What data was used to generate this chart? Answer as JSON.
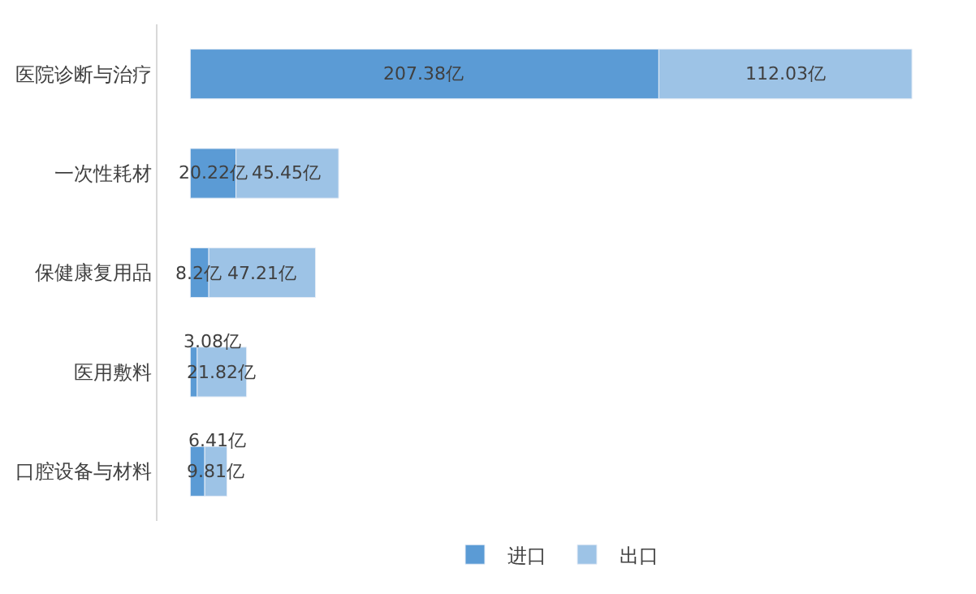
{
  "chart_data": {
    "type": "bar",
    "orientation": "horizontal",
    "stacked": true,
    "categories": [
      "医院诊断与治疗",
      "一次性耗材",
      "保健康复用品",
      "医用敷料",
      "口腔设备与材料"
    ],
    "series": [
      {
        "name": "进口",
        "color": "#5b9bd5",
        "values": [
          207.38,
          20.22,
          8.2,
          3.08,
          6.41
        ],
        "value_labels": [
          "207.38亿",
          "20.22亿",
          "8.2亿",
          "3.08亿",
          "6.41亿"
        ]
      },
      {
        "name": "出口",
        "color": "#9dc3e6",
        "values": [
          112.03,
          45.45,
          47.21,
          21.82,
          9.81
        ],
        "value_labels": [
          "112.03亿",
          "45.45亿",
          "47.21亿",
          "21.82亿",
          "9.81亿"
        ]
      }
    ],
    "legend": "bottom"
  }
}
